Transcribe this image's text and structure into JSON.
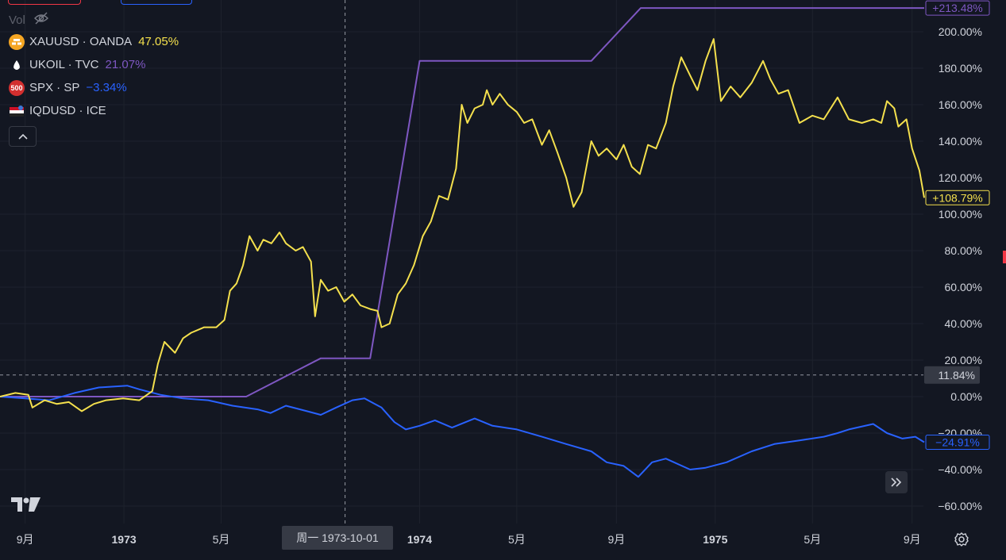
{
  "legend": {
    "vol_label": "Vol",
    "items": [
      {
        "symbol": "XAUUSD · OANDA",
        "value": "47.05%",
        "color": "#f4e04d",
        "icon": "gold-bars-icon",
        "icon_color": "#f5a623"
      },
      {
        "symbol": "UKOIL · TVC",
        "value": "21.07%",
        "color": "#7e57c2",
        "icon": "oil-drop-icon",
        "icon_color": "#ffffff"
      },
      {
        "symbol": "SPX · SP",
        "value": "−3.34%",
        "color": "#2962ff",
        "icon": "sp500-badge-icon",
        "icon_color": "#d32f2f",
        "icon_text": "500"
      },
      {
        "symbol": "IQDUSD · ICE",
        "value": "",
        "color": "#d1d4dc",
        "icon": "currency-flag-icon",
        "icon_color": "#3c78d8"
      }
    ]
  },
  "crosshair": {
    "x_label": "周一 1973-10-01",
    "y_label": "11.84%"
  },
  "colors": {
    "background": "#131722",
    "grid": "#1e222d",
    "axis_text": "#d1d4dc",
    "gold": "#f4e04d",
    "oil": "#7e57c2",
    "spx": "#2962ff"
  },
  "chart_data": {
    "type": "line",
    "x_unit": "date",
    "y_unit": "percent change",
    "xlim": [
      "1972-08-01",
      "1975-09-15"
    ],
    "ylim": [
      -60,
      220
    ],
    "y_ticks": [
      200,
      180,
      160,
      140,
      120,
      100,
      80,
      60,
      40,
      20,
      0,
      -20,
      -40,
      -60
    ],
    "y_tick_labels": [
      "200.00%",
      "180.00%",
      "160.00%",
      "140.00%",
      "120.00%",
      "100.00%",
      "80.00%",
      "60.00%",
      "40.00%",
      "20.00%",
      "0.00%",
      "−20.00%",
      "−40.00%",
      "−60.00%"
    ],
    "x_ticks": [
      {
        "date": "1972-09-01",
        "label": "9月",
        "bold": false
      },
      {
        "date": "1973-01-01",
        "label": "1973",
        "bold": true
      },
      {
        "date": "1973-05-01",
        "label": "5月",
        "bold": false
      },
      {
        "date": "1974-01-01",
        "label": "1974",
        "bold": true
      },
      {
        "date": "1974-05-01",
        "label": "5月",
        "bold": false
      },
      {
        "date": "1974-09-01",
        "label": "9月",
        "bold": false
      },
      {
        "date": "1975-01-01",
        "label": "1975",
        "bold": true
      },
      {
        "date": "1975-05-01",
        "label": "5月",
        "bold": false
      },
      {
        "date": "1975-09-01",
        "label": "9月",
        "bold": false
      }
    ],
    "grid": true,
    "crosshair_date": "1973-10-01",
    "crosshair_value": 11.84,
    "series": [
      {
        "name": "XAUUSD · OANDA",
        "color": "#f4e04d",
        "last_label": "+108.79%",
        "points": [
          [
            "1972-08-01",
            0
          ],
          [
            "1972-08-20",
            2
          ],
          [
            "1972-09-05",
            1
          ],
          [
            "1972-09-10",
            -6
          ],
          [
            "1972-09-25",
            -2
          ],
          [
            "1972-10-10",
            -4
          ],
          [
            "1972-10-25",
            -3
          ],
          [
            "1972-11-10",
            -8
          ],
          [
            "1972-11-25",
            -4
          ],
          [
            "1972-12-10",
            -2
          ],
          [
            "1972-12-31",
            -1
          ],
          [
            "1973-01-20",
            -2
          ],
          [
            "1973-02-05",
            3
          ],
          [
            "1973-02-12",
            18
          ],
          [
            "1973-02-20",
            30
          ],
          [
            "1973-03-05",
            24
          ],
          [
            "1973-03-15",
            32
          ],
          [
            "1973-03-25",
            35
          ],
          [
            "1973-04-10",
            38
          ],
          [
            "1973-04-25",
            38
          ],
          [
            "1973-05-05",
            42
          ],
          [
            "1973-05-12",
            58
          ],
          [
            "1973-05-20",
            62
          ],
          [
            "1973-05-28",
            72
          ],
          [
            "1973-06-05",
            88
          ],
          [
            "1973-06-15",
            80
          ],
          [
            "1973-06-22",
            86
          ],
          [
            "1973-07-02",
            84
          ],
          [
            "1973-07-12",
            90
          ],
          [
            "1973-07-20",
            84
          ],
          [
            "1973-08-01",
            80
          ],
          [
            "1973-08-10",
            82
          ],
          [
            "1973-08-20",
            74
          ],
          [
            "1973-08-25",
            44
          ],
          [
            "1973-09-01",
            64
          ],
          [
            "1973-09-10",
            58
          ],
          [
            "1973-09-20",
            60
          ],
          [
            "1973-09-30",
            52
          ],
          [
            "1973-10-10",
            56
          ],
          [
            "1973-10-20",
            50
          ],
          [
            "1973-11-01",
            48
          ],
          [
            "1973-11-10",
            47
          ],
          [
            "1973-11-15",
            38
          ],
          [
            "1973-11-25",
            40
          ],
          [
            "1973-12-05",
            56
          ],
          [
            "1973-12-15",
            62
          ],
          [
            "1973-12-25",
            72
          ],
          [
            "1974-01-05",
            88
          ],
          [
            "1974-01-15",
            96
          ],
          [
            "1974-01-25",
            110
          ],
          [
            "1974-02-05",
            108
          ],
          [
            "1974-02-15",
            125
          ],
          [
            "1974-02-22",
            160
          ],
          [
            "1974-03-01",
            150
          ],
          [
            "1974-03-10",
            158
          ],
          [
            "1974-03-20",
            160
          ],
          [
            "1974-03-25",
            168
          ],
          [
            "1974-04-01",
            160
          ],
          [
            "1974-04-10",
            166
          ],
          [
            "1974-04-20",
            160
          ],
          [
            "1974-05-01",
            156
          ],
          [
            "1974-05-10",
            150
          ],
          [
            "1974-05-20",
            152
          ],
          [
            "1974-06-01",
            138
          ],
          [
            "1974-06-10",
            146
          ],
          [
            "1974-06-20",
            134
          ],
          [
            "1974-07-01",
            120
          ],
          [
            "1974-07-10",
            104
          ],
          [
            "1974-07-20",
            112
          ],
          [
            "1974-08-01",
            140
          ],
          [
            "1974-08-10",
            132
          ],
          [
            "1974-08-20",
            136
          ],
          [
            "1974-09-01",
            130
          ],
          [
            "1974-09-10",
            138
          ],
          [
            "1974-09-20",
            126
          ],
          [
            "1974-09-30",
            122
          ],
          [
            "1974-10-10",
            138
          ],
          [
            "1974-10-20",
            136
          ],
          [
            "1974-11-01",
            150
          ],
          [
            "1974-11-10",
            170
          ],
          [
            "1974-11-20",
            186
          ],
          [
            "1974-12-01",
            176
          ],
          [
            "1974-12-10",
            168
          ],
          [
            "1974-12-20",
            184
          ],
          [
            "1974-12-30",
            196
          ],
          [
            "1975-01-08",
            162
          ],
          [
            "1975-01-20",
            170
          ],
          [
            "1975-02-01",
            164
          ],
          [
            "1975-02-15",
            172
          ],
          [
            "1975-03-01",
            184
          ],
          [
            "1975-03-10",
            174
          ],
          [
            "1975-03-20",
            166
          ],
          [
            "1975-04-01",
            168
          ],
          [
            "1975-04-15",
            150
          ],
          [
            "1975-05-01",
            154
          ],
          [
            "1975-05-15",
            152
          ],
          [
            "1975-06-01",
            164
          ],
          [
            "1975-06-15",
            152
          ],
          [
            "1975-07-01",
            150
          ],
          [
            "1975-07-15",
            152
          ],
          [
            "1975-07-25",
            150
          ],
          [
            "1975-08-01",
            162
          ],
          [
            "1975-08-10",
            158
          ],
          [
            "1975-08-15",
            148
          ],
          [
            "1975-08-25",
            152
          ],
          [
            "1975-09-01",
            136
          ],
          [
            "1975-09-10",
            124
          ],
          [
            "1975-09-16",
            109
          ]
        ]
      },
      {
        "name": "UKOIL · TVC",
        "color": "#7e57c2",
        "last_label": "+213.48%",
        "points": [
          [
            "1972-08-01",
            0
          ],
          [
            "1973-06-01",
            0
          ],
          [
            "1973-09-01",
            21
          ],
          [
            "1973-11-01",
            21
          ],
          [
            "1974-01-01",
            184
          ],
          [
            "1974-08-01",
            184
          ],
          [
            "1974-10-01",
            213
          ],
          [
            "1975-09-16",
            213
          ]
        ]
      },
      {
        "name": "SPX · SP",
        "color": "#2962ff",
        "last_label": "−24.91%",
        "points": [
          [
            "1972-08-01",
            0
          ],
          [
            "1972-09-01",
            -1
          ],
          [
            "1972-10-01",
            -2
          ],
          [
            "1972-11-01",
            2
          ],
          [
            "1972-12-01",
            5
          ],
          [
            "1973-01-05",
            6
          ],
          [
            "1973-01-20",
            4
          ],
          [
            "1973-02-15",
            1
          ],
          [
            "1973-03-15",
            -1
          ],
          [
            "1973-04-15",
            -2
          ],
          [
            "1973-05-15",
            -5
          ],
          [
            "1973-06-15",
            -7
          ],
          [
            "1973-07-01",
            -9
          ],
          [
            "1973-07-20",
            -5
          ],
          [
            "1973-08-15",
            -8
          ],
          [
            "1973-09-01",
            -10
          ],
          [
            "1973-09-20",
            -6
          ],
          [
            "1973-10-10",
            -2
          ],
          [
            "1973-10-25",
            -1
          ],
          [
            "1973-11-15",
            -6
          ],
          [
            "1973-12-01",
            -14
          ],
          [
            "1973-12-15",
            -18
          ],
          [
            "1974-01-01",
            -16
          ],
          [
            "1974-01-20",
            -13
          ],
          [
            "1974-02-10",
            -17
          ],
          [
            "1974-03-10",
            -12
          ],
          [
            "1974-04-01",
            -16
          ],
          [
            "1974-05-01",
            -18
          ],
          [
            "1974-06-01",
            -22
          ],
          [
            "1974-07-01",
            -26
          ],
          [
            "1974-08-01",
            -30
          ],
          [
            "1974-08-20",
            -36
          ],
          [
            "1974-09-10",
            -38
          ],
          [
            "1974-09-28",
            -44
          ],
          [
            "1974-10-15",
            -36
          ],
          [
            "1974-11-01",
            -34
          ],
          [
            "1974-12-01",
            -40
          ],
          [
            "1974-12-20",
            -39
          ],
          [
            "1975-01-15",
            -36
          ],
          [
            "1975-02-15",
            -30
          ],
          [
            "1975-03-15",
            -26
          ],
          [
            "1975-04-15",
            -24
          ],
          [
            "1975-05-15",
            -22
          ],
          [
            "1975-06-01",
            -20
          ],
          [
            "1975-06-15",
            -18
          ],
          [
            "1975-07-15",
            -15
          ],
          [
            "1975-08-01",
            -20
          ],
          [
            "1975-08-20",
            -23
          ],
          [
            "1975-09-05",
            -22
          ],
          [
            "1975-09-16",
            -25
          ]
        ]
      }
    ]
  }
}
